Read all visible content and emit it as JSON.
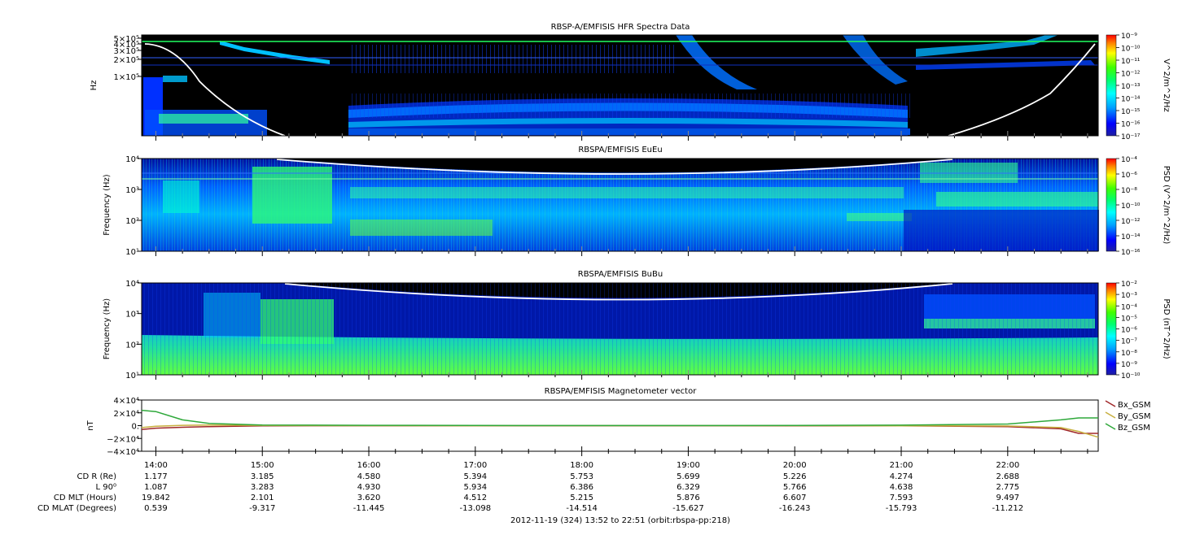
{
  "footer": "2012-11-19 (324) 13:52 to 22:51 (orbit:rbspa-pp:218)",
  "chart_data": [
    {
      "type": "heatmap",
      "title": "RBSP-A/EMFISIS  HFR Spectra Data",
      "ylabel": "Hz",
      "y_ticks": [
        "5×10⁵",
        "4×10⁵",
        "3×10⁵",
        "2×10⁵",
        "1×10⁵"
      ],
      "y_tick_values": [
        500000,
        400000,
        300000,
        200000,
        100000
      ],
      "colorbar_label": "V^2/m^2/Hz",
      "colorbar_ticks": [
        "10⁻⁹",
        "10⁻¹⁰",
        "10⁻¹¹",
        "10⁻¹²",
        "10⁻¹³",
        "10⁻¹⁴",
        "10⁻¹⁵",
        "10⁻¹⁶",
        "10⁻¹⁷"
      ],
      "colorbar_range": [
        1e-17,
        1e-09
      ],
      "scale": "log"
    },
    {
      "type": "heatmap",
      "title": "RBSPA/EMFISIS  EuEu",
      "ylabel": "Frequency (Hz)",
      "y_ticks": [
        "10⁴",
        "10³",
        "10²",
        "10¹"
      ],
      "y_tick_values": [
        10000,
        1000,
        100,
        10
      ],
      "colorbar_label": "PSD (V^2/m^2/Hz)",
      "colorbar_ticks": [
        "10⁻⁴",
        "10⁻⁶",
        "10⁻⁸",
        "10⁻¹⁰",
        "10⁻¹²",
        "10⁻¹⁴",
        "10⁻¹⁶"
      ],
      "colorbar_range": [
        1e-16,
        0.0001
      ],
      "scale": "log"
    },
    {
      "type": "heatmap",
      "title": "RBSPA/EMFISIS  BuBu",
      "ylabel": "Frequency (Hz)",
      "y_ticks": [
        "10⁴",
        "10³",
        "10²",
        "10¹"
      ],
      "y_tick_values": [
        10000,
        1000,
        100,
        10
      ],
      "colorbar_label": "PSD (nT^2/Hz)",
      "colorbar_ticks": [
        "10⁻²",
        "10⁻³",
        "10⁻⁴",
        "10⁻⁵",
        "10⁻⁶",
        "10⁻⁷",
        "10⁻⁸",
        "10⁻⁹",
        "10⁻¹⁰"
      ],
      "colorbar_range": [
        1e-10,
        0.01
      ],
      "scale": "log"
    },
    {
      "type": "line",
      "title": "RBSPA/EMFISIS  Magnetometer vector",
      "ylabel": "nT",
      "y_ticks": [
        "4×10⁴",
        "2×10⁴",
        "0.",
        "−2×10⁴",
        "−4×10⁴"
      ],
      "ylim": [
        -40000,
        40000
      ],
      "x": [
        "13:52",
        "14:00",
        "14:15",
        "14:30",
        "15:00",
        "16:00",
        "17:00",
        "18:00",
        "19:00",
        "20:00",
        "21:00",
        "22:00",
        "22:30",
        "22:40",
        "22:51"
      ],
      "series": [
        {
          "name": "Bx_GSM",
          "color": "#a0282a",
          "values": [
            -6000,
            -4000,
            -2500,
            -1500,
            -200,
            -100,
            -100,
            -100,
            -100,
            -200,
            -300,
            -1500,
            -5000,
            -12000,
            -12000
          ]
        },
        {
          "name": "By_GSM",
          "color": "#c8b040",
          "values": [
            -3000,
            -1000,
            500,
            1000,
            200,
            0,
            -100,
            0,
            0,
            0,
            -200,
            -500,
            -3000,
            -9000,
            -18000
          ]
        },
        {
          "name": "Bz_GSM",
          "color": "#2ea83a",
          "values": [
            24000,
            22000,
            9000,
            3500,
            1000,
            500,
            200,
            100,
            100,
            200,
            800,
            2500,
            9000,
            12000,
            12000
          ]
        }
      ]
    }
  ],
  "time_axis": {
    "ticks": [
      "14:00",
      "15:00",
      "16:00",
      "17:00",
      "18:00",
      "19:00",
      "20:00",
      "21:00",
      "22:00"
    ],
    "rows": [
      {
        "label": "CD R (Re)",
        "values": [
          "1.177",
          "3.185",
          "4.580",
          "5.394",
          "5.753",
          "5.699",
          "5.226",
          "4.274",
          "2.688"
        ]
      },
      {
        "label": "L 90⁰",
        "values": [
          "1.087",
          "3.283",
          "4.930",
          "5.934",
          "6.386",
          "6.329",
          "5.766",
          "4.638",
          "2.775"
        ]
      },
      {
        "label": "CD MLT (Hours)",
        "values": [
          "19.842",
          "2.101",
          "3.620",
          "4.512",
          "5.215",
          "5.876",
          "6.607",
          "7.593",
          "9.497"
        ]
      },
      {
        "label": "CD MLAT (Degrees)",
        "values": [
          "0.539",
          "-9.317",
          "-11.445",
          "-13.098",
          "-14.514",
          "-15.627",
          "-16.243",
          "-15.793",
          "-11.212"
        ]
      }
    ]
  }
}
